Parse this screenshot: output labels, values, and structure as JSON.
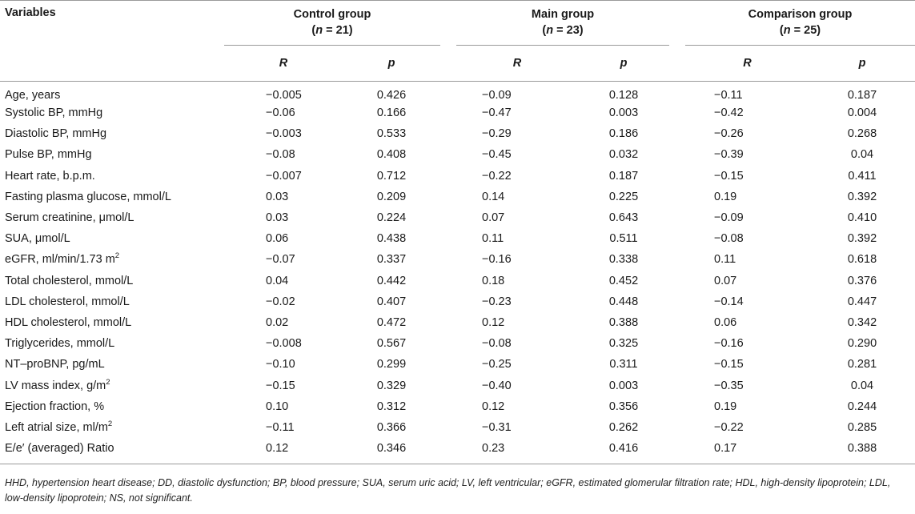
{
  "header": {
    "variables": "Variables",
    "groups": [
      {
        "name": "Control group",
        "n": "(n = 21)",
        "n_pre": "(",
        "n_var": "n",
        "n_post": " = 21)"
      },
      {
        "name": "Main group",
        "n": "(n = 23)",
        "n_pre": "(",
        "n_var": "n",
        "n_post": " = 23)"
      },
      {
        "name": "Comparison group",
        "n": "(n = 25)",
        "n_pre": "(",
        "n_var": "n",
        "n_post": " = 25)"
      }
    ],
    "r_label": "R",
    "p_label": "p"
  },
  "rows": [
    {
      "label": "Age, years",
      "cells": [
        "−0.005",
        "0.426",
        "−0.09",
        "0.128",
        "−0.11",
        "0.187"
      ]
    },
    {
      "label": "Systolic BP, mmHg",
      "cells": [
        "−0.06",
        "0.166",
        "−0.47",
        "0.003",
        "−0.42",
        "0.004"
      ]
    },
    {
      "label": "Diastolic BP, mmHg",
      "cells": [
        "−0.003",
        "0.533",
        "−0.29",
        "0.186",
        "−0.26",
        "0.268"
      ]
    },
    {
      "label": "Pulse BP, mmHg",
      "cells": [
        "−0.08",
        "0.408",
        "−0.45",
        "0.032",
        "−0.39",
        "0.04"
      ]
    },
    {
      "label": "Heart rate, b.p.m.",
      "cells": [
        "−0.007",
        "0.712",
        "−0.22",
        "0.187",
        "−0.15",
        "0.411"
      ]
    },
    {
      "label": "Fasting plasma glucose, mmol/L",
      "cells": [
        "0.03",
        "0.209",
        "0.14",
        "0.225",
        "0.19",
        "0.392"
      ]
    },
    {
      "label": "Serum creatinine, μmol/L",
      "cells": [
        "0.03",
        "0.224",
        "0.07",
        "0.643",
        "−0.09",
        "0.410"
      ]
    },
    {
      "label": "SUA, μmol/L",
      "cells": [
        "0.06",
        "0.438",
        "0.11",
        "0.511",
        "−0.08",
        "0.392"
      ]
    },
    {
      "label": "eGFR, ml/min/1.73 m",
      "sup": "2",
      "cells": [
        "−0.07",
        "0.337",
        "−0.16",
        "0.338",
        "0.11",
        "0.618"
      ]
    },
    {
      "label": "Total cholesterol, mmol/L",
      "cells": [
        "0.04",
        "0.442",
        "0.18",
        "0.452",
        "0.07",
        "0.376"
      ]
    },
    {
      "label": "LDL cholesterol, mmol/L",
      "cells": [
        "−0.02",
        "0.407",
        "−0.23",
        "0.448",
        "−0.14",
        "0.447"
      ]
    },
    {
      "label": "HDL cholesterol, mmol/L",
      "cells": [
        "0.02",
        "0.472",
        "0.12",
        "0.388",
        "0.06",
        "0.342"
      ]
    },
    {
      "label": "Triglycerides, mmol/L",
      "cells": [
        "−0.008",
        "0.567",
        "−0.08",
        "0.325",
        "−0.16",
        "0.290"
      ]
    },
    {
      "label": "NT–proBNP, pg/mL",
      "cells": [
        "−0.10",
        "0.299",
        "−0.25",
        "0.311",
        "−0.15",
        "0.281"
      ]
    },
    {
      "label": "LV mass index, g/m",
      "sup": "2",
      "cells": [
        "−0.15",
        "0.329",
        "−0.40",
        "0.003",
        "−0.35",
        "0.04"
      ]
    },
    {
      "label": "Ejection fraction, %",
      "cells": [
        "0.10",
        "0.312",
        "0.12",
        "0.356",
        "0.19",
        "0.244"
      ]
    },
    {
      "label": "Left atrial size, ml/m",
      "sup": "2",
      "cells": [
        "−0.11",
        "0.366",
        "−0.31",
        "0.262",
        "−0.22",
        "0.285"
      ]
    },
    {
      "label": "E/e′ (averaged) Ratio",
      "cells": [
        "0.12",
        "0.346",
        "0.23",
        "0.416",
        "0.17",
        "0.388"
      ]
    }
  ],
  "footnote": "HHD, hypertension heart disease; DD, diastolic dysfunction; BP, blood pressure; SUA, serum uric acid; LV, left ventricular; eGFR, estimated glomerular filtration rate; HDL, high-density lipoprotein; LDL, low-density lipoprotein; NS, not significant."
}
